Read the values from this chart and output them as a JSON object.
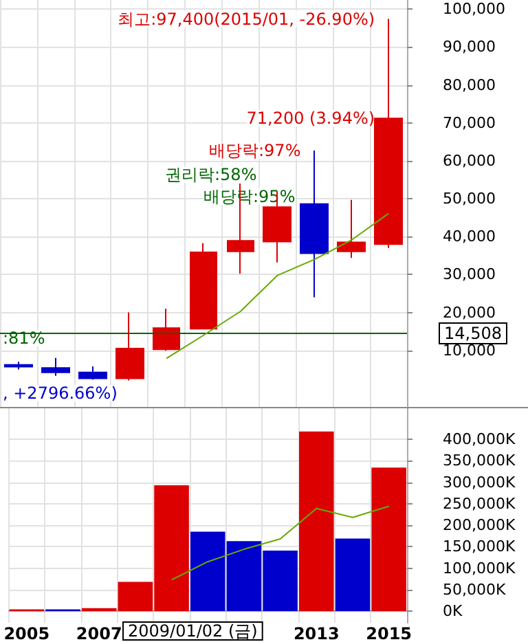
{
  "chart_data": [
    {
      "type": "candlestick",
      "categories": [
        "2005",
        null,
        "2007",
        null,
        null,
        null,
        null,
        null,
        "2013",
        null,
        "2015"
      ],
      "ohlc": [
        [
          6200,
          7000,
          5000,
          5700
        ],
        [
          5400,
          8000,
          3300,
          4200
        ],
        [
          4200,
          5800,
          2300,
          2600
        ],
        [
          2600,
          20000,
          2100,
          10500
        ],
        [
          10300,
          21000,
          9900,
          15900
        ],
        [
          15700,
          38300,
          15700,
          35900
        ],
        [
          36100,
          54000,
          30200,
          38900
        ],
        [
          38700,
          52000,
          33200,
          47800
        ],
        [
          48600,
          62700,
          24000,
          35600
        ],
        [
          36100,
          49700,
          34400,
          38500
        ],
        [
          38000,
          97400,
          37000,
          71200
        ]
      ],
      "colors": [
        "#0000cc",
        "#0000cc",
        "#0000cc",
        "#dd0000",
        "#dd0000",
        "#dd0000",
        "#dd0000",
        "#dd0000",
        "#0000cc",
        "#dd0000",
        "#dd0000"
      ],
      "series": [
        {
          "type": "line",
          "color": "#66aa00",
          "values": [
            null,
            null,
            null,
            null,
            7900,
            14000,
            20300,
            29800,
            34000,
            39100,
            46100
          ]
        }
      ],
      "ylim": [
        -4900,
        102400
      ],
      "yticks": [
        {
          "value": 10000,
          "label": "10,000"
        },
        {
          "value": 20000,
          "label": "20,000"
        },
        {
          "value": 30000,
          "label": "30,000"
        },
        {
          "value": 40000,
          "label": "40,000"
        },
        {
          "value": 50000,
          "label": "50,000"
        },
        {
          "value": 60000,
          "label": "60,000"
        },
        {
          "value": 70000,
          "label": "70,000"
        },
        {
          "value": 80000,
          "label": "80,000"
        },
        {
          "value": 90000,
          "label": "90,000"
        },
        {
          "value": 100000,
          "label": "100,000"
        }
      ],
      "tick_labels": "y",
      "grid": true,
      "ref_lines": [
        {
          "axis": "y",
          "value": 14508,
          "label": "14,508",
          "color": "#006600"
        }
      ],
      "annotations": [
        {
          "text": "최고:97,400(2015/01, -26.90%)",
          "x": "2015",
          "y": 97400
        },
        {
          "text": "71,200 (3.94%)",
          "x": "2015",
          "y": 71200
        },
        {
          "text": "배당락:97%",
          "x": "2013",
          "y": 62700
        },
        "권리락:58%",
        "배당락:95%",
        ":81%",
        ", +2796.66%)"
      ]
    },
    {
      "type": "bar",
      "categories": [
        "2005",
        null,
        "2007",
        null,
        null,
        null,
        null,
        null,
        "2013",
        null,
        "2015"
      ],
      "series": [
        {
          "type": "bar",
          "colors": [
            "#dd0000",
            "#0000cc",
            "#dd0000",
            "#dd0000",
            "#dd0000",
            "#0000cc",
            "#0000cc",
            "#0000cc",
            "#dd0000",
            "#0000cc",
            "#dd0000"
          ],
          "values": [
            4000,
            4000,
            7000,
            68000,
            293000,
            185000,
            163000,
            141000,
            418000,
            169000,
            334000
          ]
        },
        {
          "type": "line",
          "color": "#66aa00",
          "values": [
            null,
            null,
            null,
            null,
            73000,
            115000,
            144000,
            168000,
            239000,
            218000,
            244000
          ]
        }
      ],
      "ylim": [
        -27000,
        472000
      ],
      "yticks": [
        {
          "value": 0,
          "label": "0K"
        },
        {
          "value": 50000,
          "label": "50,000K"
        },
        {
          "value": 100000,
          "label": "100,000K"
        },
        {
          "value": 150000,
          "label": "150,000K"
        },
        {
          "value": 200000,
          "label": "200,000K"
        },
        {
          "value": 250000,
          "label": "250,000K"
        },
        {
          "value": 300000,
          "label": "300,000K"
        },
        {
          "value": 350000,
          "label": "350,000K"
        },
        {
          "value": 400000,
          "label": "400,000K"
        }
      ],
      "grid": true,
      "annotations": [
        "2009/01/02 (금)"
      ]
    }
  ]
}
